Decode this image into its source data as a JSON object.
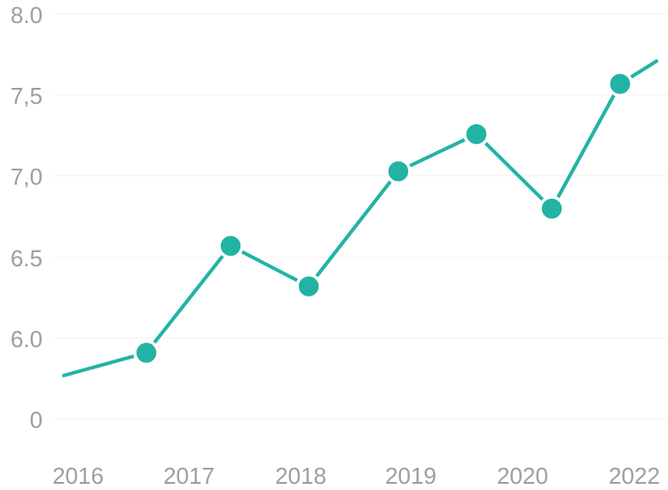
{
  "chart_data": {
    "type": "line",
    "x_tick_labels": [
      "2016",
      "2017",
      "2018",
      "2019",
      "2020",
      "2022"
    ],
    "y_tick_labels": [
      "0",
      "6.0",
      "6.5",
      "7,0",
      "7,5",
      "8.0"
    ],
    "series": [
      {
        "values": [
          5.77,
          5.91,
          6.57,
          6.32,
          7.03,
          7.26,
          6.8,
          7.57,
          7.71
        ],
        "markers": [
          false,
          true,
          true,
          true,
          true,
          true,
          true,
          true,
          false
        ]
      }
    ],
    "color": "#22b3a4",
    "grid": true,
    "legend": "none"
  }
}
